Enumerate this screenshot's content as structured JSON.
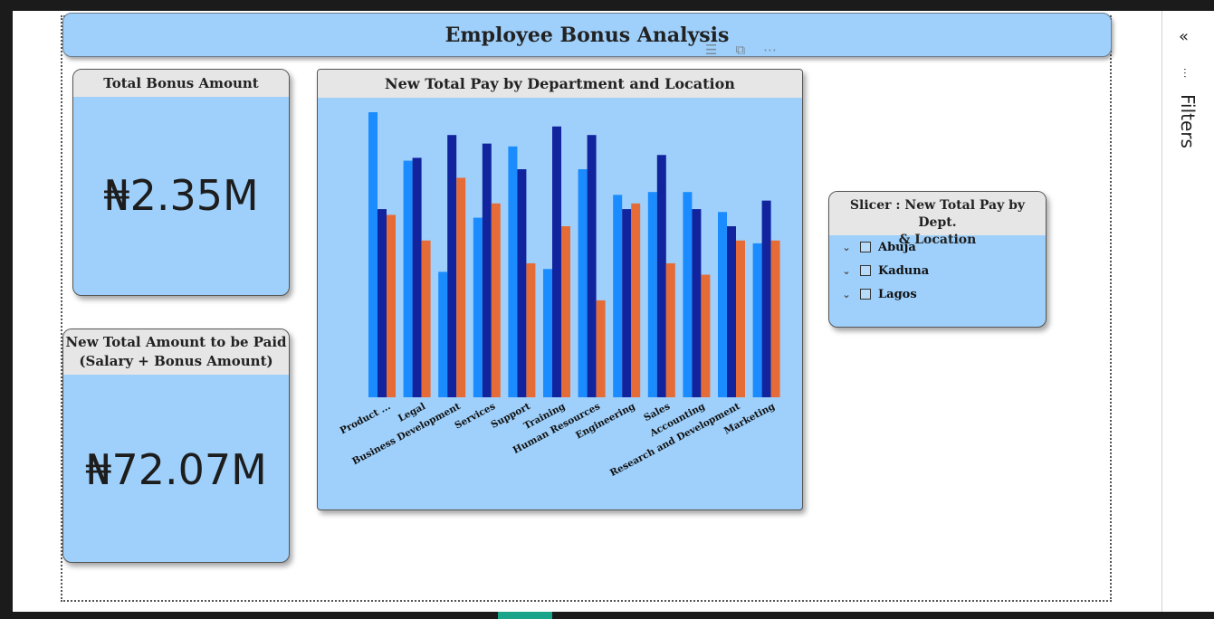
{
  "report": {
    "title": "Employee Bonus Analysis",
    "visual_header_icons": [
      "filter-icon",
      "focus-mode-icon",
      "more-options-icon"
    ]
  },
  "kpi_total_bonus": {
    "title": "Total Bonus Amount",
    "value": "₦2.35M"
  },
  "kpi_total_pay": {
    "title_line1": "New Total Amount to be Paid",
    "title_line2": "(Salary + Bonus Amount)",
    "value": "₦72.07M"
  },
  "slicer": {
    "title_line1": "Slicer : New Total Pay by Dept.",
    "title_line2": "& Location",
    "items": [
      {
        "label": "Abuja",
        "checked": false
      },
      {
        "label": "Kaduna",
        "checked": false
      },
      {
        "label": "Lagos",
        "checked": false
      }
    ]
  },
  "filters_pane": {
    "label": "Filters",
    "collapse_icon": "double-chevron-left-icon",
    "filter_icon": "filter-icon"
  },
  "colors": {
    "card_bg": "#9fd0fb",
    "header_bg": "#e6e6e6",
    "series": [
      "#1a8cff",
      "#12239e",
      "#e66c37"
    ]
  },
  "chart_data": {
    "type": "bar",
    "title": "New Total Pay by Department and Location",
    "categories": [
      "Product ...",
      "Legal",
      "Business Development",
      "Services",
      "Support",
      "Training",
      "Human Resources",
      "Engineering",
      "Sales",
      "Accounting",
      "Research and Development",
      "Marketing"
    ],
    "series": [
      {
        "values": [
          100,
          83,
          44,
          63,
          88,
          45,
          80,
          71,
          72,
          72,
          65,
          54
        ],
        "color": "#1a8cff"
      },
      {
        "values": [
          66,
          84,
          92,
          89,
          80,
          95,
          92,
          66,
          85,
          66,
          60,
          69
        ],
        "color": "#12239e"
      },
      {
        "values": [
          64,
          55,
          77,
          68,
          47,
          60,
          34,
          68,
          47,
          43,
          55,
          55
        ],
        "color": "#e66c37"
      }
    ],
    "ylim": [
      0,
      100
    ],
    "grid": false,
    "legend": "none"
  }
}
